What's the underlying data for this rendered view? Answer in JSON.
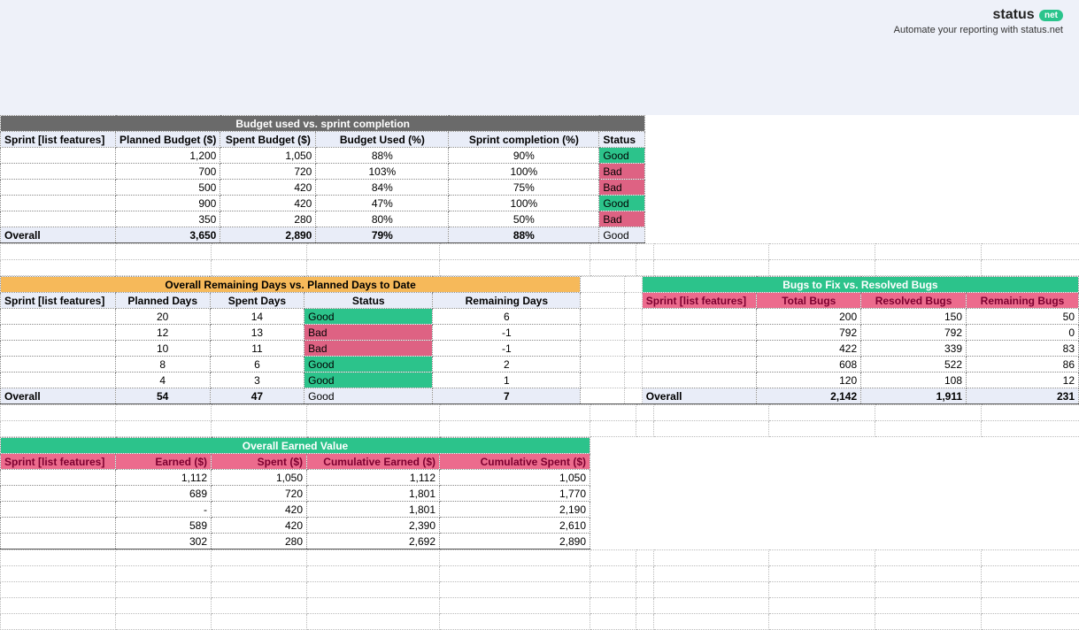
{
  "brand": {
    "text": "status",
    "badge": "net",
    "sub": "Automate your reporting with status.net"
  },
  "colors": {
    "banner_bg": "#eef1f9",
    "title_gray": "#6a6a6a",
    "title_orange": "#f6b95a",
    "title_green": "#2cc38b",
    "hdr_bg": "#e9edf8",
    "hdr_pink": "#ec6b8d",
    "good": "#2cc38b",
    "bad": "#de6283"
  },
  "colwidths": {
    "c0": 130,
    "c1": 108,
    "c2": 108,
    "c3": 150,
    "c4": 170,
    "c5": 52,
    "gap": 20,
    "d0": 130,
    "d1": 120,
    "d2": 120,
    "d3": 128
  },
  "budget": {
    "title": "Budget used vs. sprint completion",
    "headers": [
      "Sprint [list features]",
      "Planned Budget ($)",
      "Spent Budget ($)",
      "Budget Used (%)",
      "Sprint completion (%)",
      "Status"
    ],
    "rows": [
      {
        "sprint": "",
        "planned": "1,200",
        "spent": "1,050",
        "used": "88%",
        "comp": "90%",
        "status": "Good",
        "cls": "good"
      },
      {
        "sprint": "",
        "planned": "700",
        "spent": "720",
        "used": "103%",
        "comp": "100%",
        "status": "Bad",
        "cls": "bad"
      },
      {
        "sprint": "",
        "planned": "500",
        "spent": "420",
        "used": "84%",
        "comp": "75%",
        "status": "Bad",
        "cls": "bad"
      },
      {
        "sprint": "",
        "planned": "900",
        "spent": "420",
        "used": "47%",
        "comp": "100%",
        "status": "Good",
        "cls": "good"
      },
      {
        "sprint": "",
        "planned": "350",
        "spent": "280",
        "used": "80%",
        "comp": "50%",
        "status": "Bad",
        "cls": "bad"
      }
    ],
    "overall": {
      "label": "Overall",
      "planned": "3,650",
      "spent": "2,890",
      "used": "79%",
      "comp": "88%",
      "status": "Good",
      "cls": "good"
    }
  },
  "days": {
    "title": "Overall Remaining Days vs. Planned Days to Date",
    "headers": [
      "Sprint [list features]",
      "Planned Days",
      "Spent Days",
      "Status",
      "Remaining Days"
    ],
    "rows": [
      {
        "sprint": "",
        "planned": "20",
        "spent": "14",
        "status": "Good",
        "cls": "good",
        "rem": "6"
      },
      {
        "sprint": "",
        "planned": "12",
        "spent": "13",
        "status": "Bad",
        "cls": "bad",
        "rem": "-1"
      },
      {
        "sprint": "",
        "planned": "10",
        "spent": "11",
        "status": "Bad",
        "cls": "bad",
        "rem": "-1"
      },
      {
        "sprint": "",
        "planned": "8",
        "spent": "6",
        "status": "Good",
        "cls": "good",
        "rem": "2"
      },
      {
        "sprint": "",
        "planned": "4",
        "spent": "3",
        "status": "Good",
        "cls": "good",
        "rem": "1"
      }
    ],
    "overall": {
      "label": "Overall",
      "planned": "54",
      "spent": "47",
      "status": "Good",
      "cls": "good",
      "rem": "7"
    }
  },
  "bugs": {
    "title": "Bugs to Fix vs. Resolved Bugs",
    "headers": [
      "Sprint [list features]",
      "Total Bugs",
      "Resolved Bugs",
      "Remaining Bugs"
    ],
    "rows": [
      {
        "sprint": "",
        "total": "200",
        "resolved": "150",
        "rem": "50"
      },
      {
        "sprint": "",
        "total": "792",
        "resolved": "792",
        "rem": "0"
      },
      {
        "sprint": "",
        "total": "422",
        "resolved": "339",
        "rem": "83"
      },
      {
        "sprint": "",
        "total": "608",
        "resolved": "522",
        "rem": "86"
      },
      {
        "sprint": "",
        "total": "120",
        "resolved": "108",
        "rem": "12"
      }
    ],
    "overall": {
      "label": "Overall",
      "total": "2,142",
      "resolved": "1,911",
      "rem": "231"
    }
  },
  "earned": {
    "title": "Overall Earned Value",
    "headers": [
      "Sprint [list features]",
      "Earned ($)",
      "Spent ($)",
      "Cumulative Earned ($)",
      "Cumulative Spent ($)"
    ],
    "rows": [
      {
        "sprint": "",
        "earned": "1,112",
        "spent": "1,050",
        "cearn": "1,112",
        "cspent": "1,050"
      },
      {
        "sprint": "",
        "earned": "689",
        "spent": "720",
        "cearn": "1,801",
        "cspent": "1,770"
      },
      {
        "sprint": "",
        "earned": "-",
        "spent": "420",
        "cearn": "1,801",
        "cspent": "2,190"
      },
      {
        "sprint": "",
        "earned": "589",
        "spent": "420",
        "cearn": "2,390",
        "cspent": "2,610"
      },
      {
        "sprint": "",
        "earned": "302",
        "spent": "280",
        "cearn": "2,692",
        "cspent": "2,890"
      }
    ]
  }
}
